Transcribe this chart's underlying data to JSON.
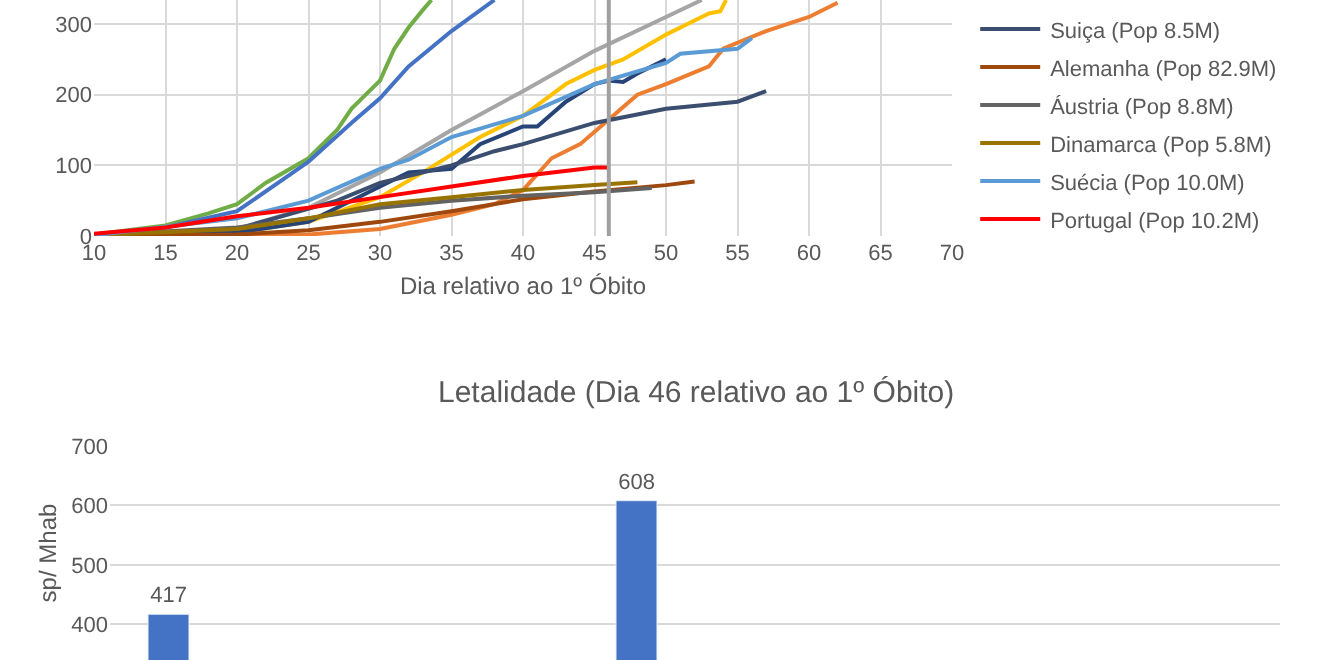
{
  "chart_data": [
    {
      "type": "line",
      "xlabel": "Dia relativo ao 1º Óbito",
      "xlim": [
        10,
        70
      ],
      "xticks": [
        10,
        15,
        20,
        25,
        30,
        35,
        40,
        45,
        50,
        55,
        60,
        65,
        70
      ],
      "ylim": [
        0,
        334
      ],
      "yticks": [
        0,
        100,
        200,
        300
      ],
      "grid": true,
      "legend": "right",
      "marker": "none",
      "line_style": "solid",
      "ref_lines": [
        {
          "axis": "x",
          "value": 46,
          "label": null,
          "color": "#a0a0a0"
        }
      ],
      "series": [
        {
          "color": "#70ad47",
          "x": [
            10,
            15,
            18,
            20,
            22,
            25,
            27,
            28,
            29,
            30,
            31,
            32,
            33,
            33.6
          ],
          "values": [
            2,
            15,
            32,
            45,
            75,
            110,
            150,
            180,
            200,
            220,
            265,
            295,
            320,
            334
          ]
        },
        {
          "color": "#4472c4",
          "x": [
            10,
            15,
            20,
            25,
            28,
            30,
            32,
            35,
            38
          ],
          "values": [
            2,
            12,
            35,
            105,
            160,
            195,
            240,
            290,
            334
          ]
        },
        {
          "color": "#a5a5a5",
          "x": [
            10,
            20,
            25,
            30,
            35,
            40,
            45,
            50,
            52.5
          ],
          "values": [
            1,
            10,
            40,
            90,
            150,
            205,
            262,
            310,
            334
          ]
        },
        {
          "color": "#ffc000",
          "x": [
            10,
            20,
            25,
            30,
            33,
            37,
            40,
            43,
            45,
            47,
            50,
            52,
            53,
            53.8,
            54.2
          ],
          "values": [
            0,
            5,
            20,
            55,
            90,
            140,
            170,
            215,
            235,
            250,
            285,
            305,
            315,
            318,
            334
          ]
        },
        {
          "color": "#ed7d31",
          "x": [
            10,
            25,
            30,
            35,
            38,
            40,
            42,
            44,
            46,
            48,
            50,
            53,
            54,
            57,
            60,
            62
          ],
          "values": [
            0,
            2,
            10,
            30,
            45,
            65,
            110,
            130,
            165,
            200,
            215,
            240,
            265,
            290,
            310,
            330
          ]
        },
        {
          "color": "#264478",
          "x": [
            10,
            20,
            25,
            28,
            30,
            32,
            35,
            37,
            40,
            41,
            43,
            45,
            46,
            47,
            48,
            50
          ],
          "values": [
            0,
            5,
            20,
            50,
            70,
            90,
            95,
            130,
            155,
            155,
            190,
            215,
            220,
            218,
            230,
            250
          ]
        },
        {
          "name": "Suiça (Pop 8.5M)",
          "color": "#3b4e70",
          "x": [
            10,
            20,
            27,
            30,
            35,
            38,
            40,
            45,
            50,
            55,
            57
          ],
          "values": [
            1,
            10,
            50,
            75,
            100,
            120,
            130,
            160,
            180,
            190,
            205
          ]
        },
        {
          "name": "Alemanha (Pop 82.9M)",
          "color": "#9e480e",
          "x": [
            10,
            20,
            25,
            30,
            35,
            40,
            45,
            50,
            52
          ],
          "values": [
            0,
            2,
            8,
            20,
            35,
            52,
            63,
            72,
            77
          ]
        },
        {
          "name": "Áustria (Pop 8.8M)",
          "color": "#636363",
          "x": [
            10,
            20,
            25,
            30,
            35,
            40,
            45,
            49
          ],
          "values": [
            1,
            12,
            25,
            40,
            50,
            57,
            62,
            68
          ]
        },
        {
          "name": "Dinamarca (Pop 5.8M)",
          "color": "#997300",
          "x": [
            10,
            20,
            25,
            30,
            35,
            40,
            45,
            48
          ],
          "values": [
            1,
            10,
            25,
            45,
            55,
            65,
            72,
            76
          ]
        },
        {
          "name": "Suécia (Pop 10.0M)",
          "color": "#5b9bd5",
          "x": [
            10,
            20,
            25,
            30,
            32,
            35,
            40,
            45,
            50,
            51,
            55,
            56
          ],
          "values": [
            1,
            25,
            50,
            95,
            108,
            140,
            170,
            215,
            245,
            258,
            265,
            280
          ]
        },
        {
          "name": "Portugal (Pop 10.2M)",
          "color": "#ff0000",
          "x": [
            10,
            15,
            20,
            25,
            30,
            35,
            40,
            45,
            46
          ],
          "values": [
            3,
            12,
            28,
            40,
            55,
            70,
            85,
            97,
            97
          ]
        }
      ]
    },
    {
      "type": "bar",
      "title": "Letalidade (Dia 46 relativo ao 1º Óbito)",
      "ylabel": "sp/ Mhab",
      "categories": [
        null,
        null,
        null,
        null,
        null,
        null,
        null,
        null,
        null,
        null
      ],
      "values": [
        417,
        null,
        null,
        null,
        608,
        null,
        null,
        null,
        null,
        null
      ],
      "value_labels": [
        "417",
        null,
        null,
        null,
        "608",
        null,
        null,
        null,
        null,
        null
      ],
      "color": "#4472c4",
      "ylim": [
        340,
        700
      ],
      "yticks": [
        400,
        500,
        600,
        700
      ],
      "grid": "y",
      "legend": false,
      "tick_labels": "y"
    }
  ]
}
